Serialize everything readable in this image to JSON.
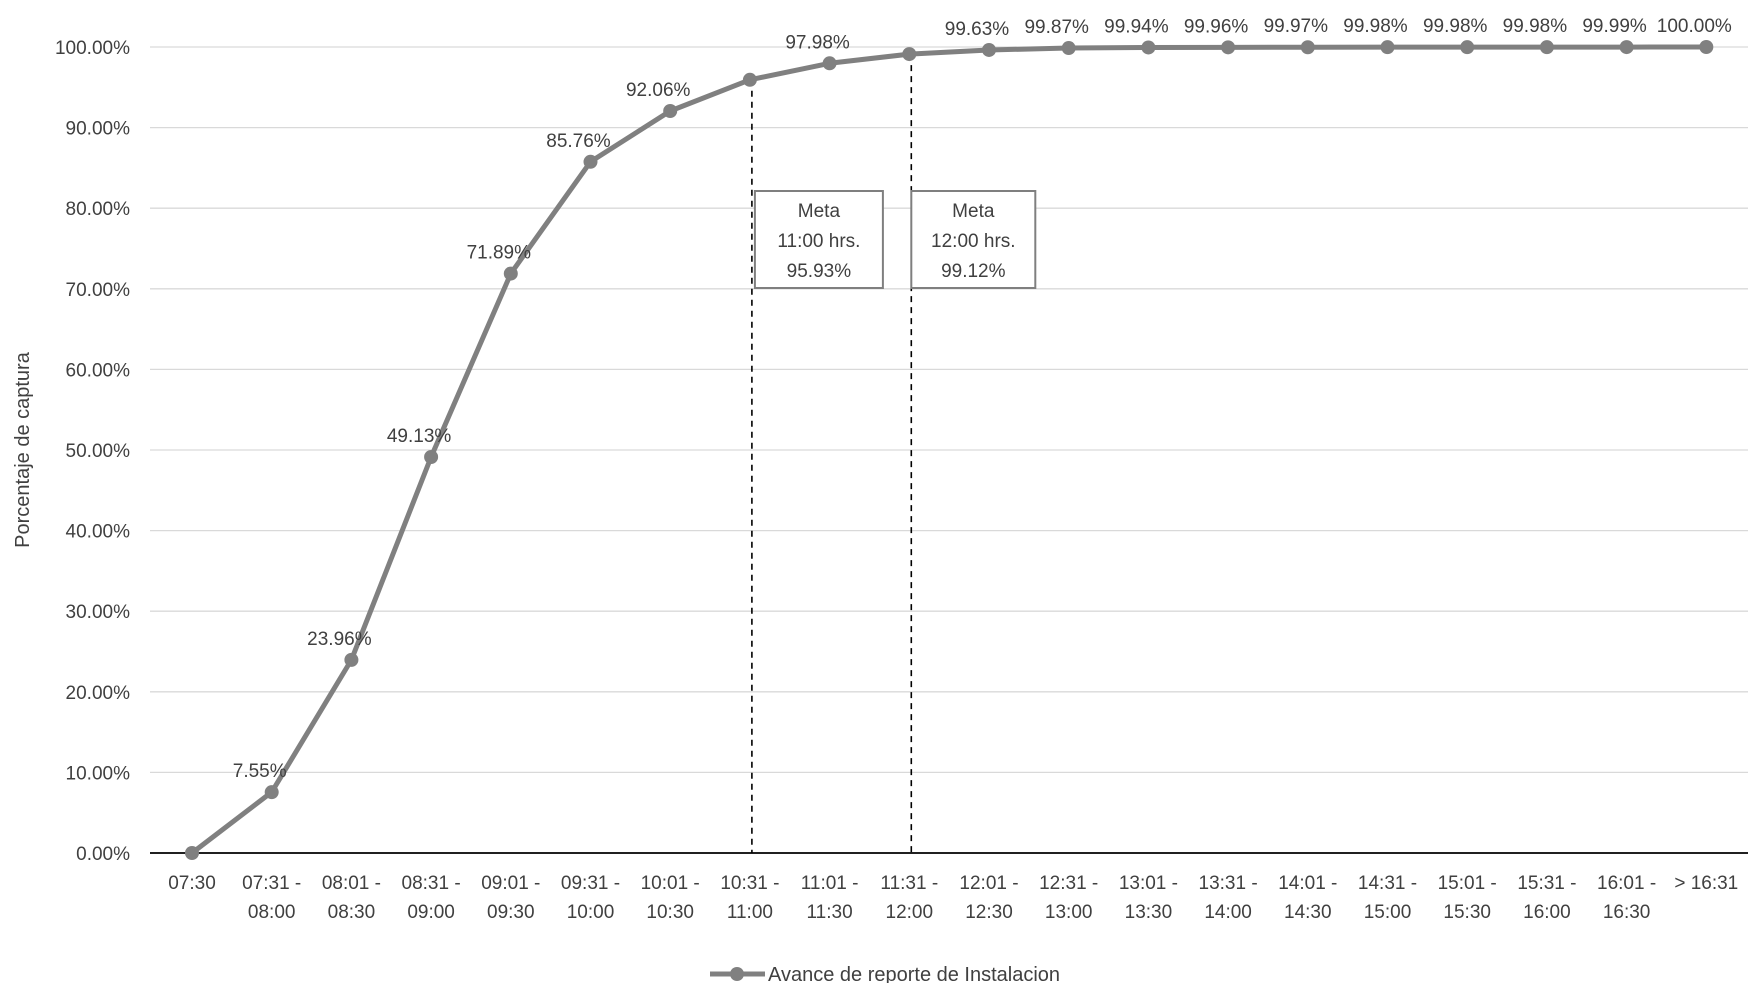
{
  "chart_data": {
    "type": "line",
    "title": "",
    "ylabel": "Porcentaje de captura",
    "xlabel": "",
    "ylim": [
      0,
      100
    ],
    "y_ticks": [
      "0.00%",
      "10.00%",
      "20.00%",
      "30.00%",
      "40.00%",
      "50.00%",
      "60.00%",
      "70.00%",
      "80.00%",
      "90.00%",
      "100.00%"
    ],
    "categories": [
      [
        "07:30",
        ""
      ],
      [
        "07:31 -",
        "08:00"
      ],
      [
        "08:01 -",
        "08:30"
      ],
      [
        "08:31 -",
        "09:00"
      ],
      [
        "09:01 -",
        "09:30"
      ],
      [
        "09:31 -",
        "10:00"
      ],
      [
        "10:01 -",
        "10:30"
      ],
      [
        "10:31 -",
        "11:00"
      ],
      [
        "11:01 -",
        "11:30"
      ],
      [
        "11:31 -",
        "12:00"
      ],
      [
        "12:01 -",
        "12:30"
      ],
      [
        "12:31 -",
        "13:00"
      ],
      [
        "13:01 -",
        "13:30"
      ],
      [
        "13:31 -",
        "14:00"
      ],
      [
        "14:01 -",
        "14:30"
      ],
      [
        "14:31 -",
        "15:00"
      ],
      [
        "15:01 -",
        "15:30"
      ],
      [
        "15:31 -",
        "16:00"
      ],
      [
        "16:01 -",
        "16:30"
      ],
      [
        "> 16:31",
        ""
      ]
    ],
    "series": [
      {
        "name": "Avance de reporte de Instalacion",
        "color": "#808080",
        "values": [
          0,
          7.55,
          23.96,
          49.13,
          71.89,
          85.76,
          92.06,
          95.93,
          97.98,
          99.12,
          99.63,
          99.87,
          99.94,
          99.96,
          99.97,
          99.98,
          99.98,
          99.98,
          99.99,
          100.0
        ],
        "labels": [
          "",
          "7.55%",
          "23.96%",
          "49.13%",
          "71.89%",
          "85.76%",
          "92.06%",
          "",
          "97.98%",
          "",
          "99.63%",
          "99.87%",
          "99.94%",
          "99.96%",
          "99.97%",
          "99.98%",
          "99.98%",
          "99.98%",
          "99.99%",
          "100.00%"
        ]
      }
    ],
    "annotations": [
      {
        "category_index": 7,
        "lines": [
          "Meta",
          "11:00 hrs.",
          "95.93%"
        ]
      },
      {
        "category_index": 9,
        "lines": [
          "Meta",
          "12:00 hrs.",
          "99.12%"
        ]
      }
    ],
    "grid": true,
    "legend": "bottom-center"
  }
}
